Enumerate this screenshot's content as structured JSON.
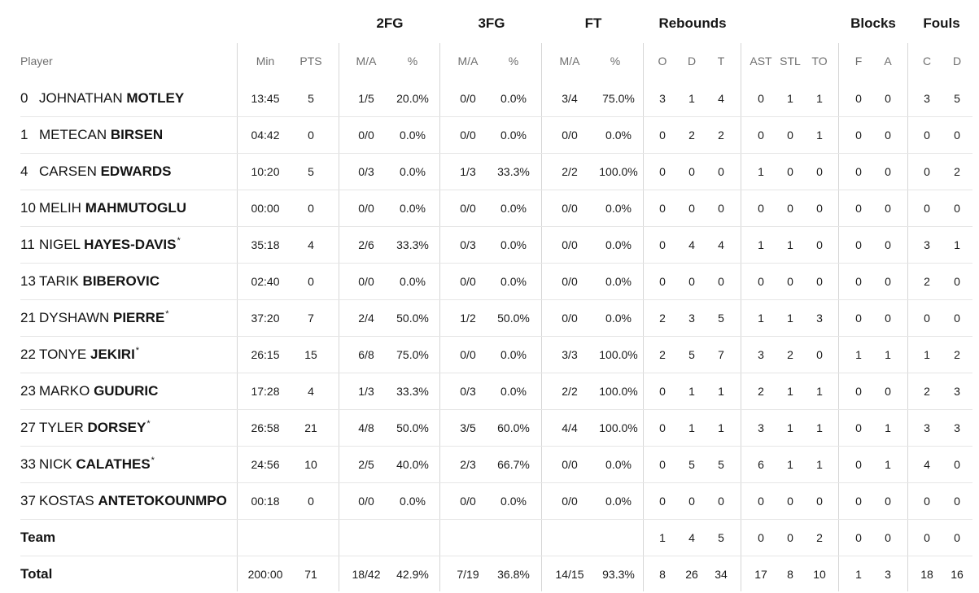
{
  "groups": {
    "fg2": "2FG",
    "fg3": "3FG",
    "ft": "FT",
    "rebounds": "Rebounds",
    "blocks": "Blocks",
    "fouls": "Fouls"
  },
  "headers": {
    "player": "Player",
    "min": "Min",
    "pts": "PTS",
    "fg2_ma": "M/A",
    "fg2_pct": "%",
    "fg3_ma": "M/A",
    "fg3_pct": "%",
    "ft_ma": "M/A",
    "ft_pct": "%",
    "reb_o": "O",
    "reb_d": "D",
    "reb_t": "T",
    "ast": "AST",
    "stl": "STL",
    "to": "TO",
    "blk_f": "F",
    "blk_a": "A",
    "foul_c": "C",
    "foul_d": "D"
  },
  "players": [
    {
      "num": "0",
      "first": "JOHNATHAN",
      "last": "MOTLEY",
      "star": "",
      "min": "13:45",
      "pts": "5",
      "fg2_ma": "1/5",
      "fg2_pct": "20.0%",
      "fg3_ma": "0/0",
      "fg3_pct": "0.0%",
      "ft_ma": "3/4",
      "ft_pct": "75.0%",
      "reb_o": "3",
      "reb_d": "1",
      "reb_t": "4",
      "ast": "0",
      "stl": "1",
      "to": "1",
      "blk_f": "0",
      "blk_a": "0",
      "foul_c": "3",
      "foul_d": "5"
    },
    {
      "num": "1",
      "first": "METECAN",
      "last": "BIRSEN",
      "star": "",
      "min": "04:42",
      "pts": "0",
      "fg2_ma": "0/0",
      "fg2_pct": "0.0%",
      "fg3_ma": "0/0",
      "fg3_pct": "0.0%",
      "ft_ma": "0/0",
      "ft_pct": "0.0%",
      "reb_o": "0",
      "reb_d": "2",
      "reb_t": "2",
      "ast": "0",
      "stl": "0",
      "to": "1",
      "blk_f": "0",
      "blk_a": "0",
      "foul_c": "0",
      "foul_d": "0"
    },
    {
      "num": "4",
      "first": "CARSEN",
      "last": "EDWARDS",
      "star": "",
      "min": "10:20",
      "pts": "5",
      "fg2_ma": "0/3",
      "fg2_pct": "0.0%",
      "fg3_ma": "1/3",
      "fg3_pct": "33.3%",
      "ft_ma": "2/2",
      "ft_pct": "100.0%",
      "reb_o": "0",
      "reb_d": "0",
      "reb_t": "0",
      "ast": "1",
      "stl": "0",
      "to": "0",
      "blk_f": "0",
      "blk_a": "0",
      "foul_c": "0",
      "foul_d": "2"
    },
    {
      "num": "10",
      "first": "MELIH",
      "last": "MAHMUTOGLU",
      "star": "",
      "min": "00:00",
      "pts": "0",
      "fg2_ma": "0/0",
      "fg2_pct": "0.0%",
      "fg3_ma": "0/0",
      "fg3_pct": "0.0%",
      "ft_ma": "0/0",
      "ft_pct": "0.0%",
      "reb_o": "0",
      "reb_d": "0",
      "reb_t": "0",
      "ast": "0",
      "stl": "0",
      "to": "0",
      "blk_f": "0",
      "blk_a": "0",
      "foul_c": "0",
      "foul_d": "0"
    },
    {
      "num": "11",
      "first": "NIGEL",
      "last": "HAYES-DAVIS",
      "star": "*",
      "min": "35:18",
      "pts": "4",
      "fg2_ma": "2/6",
      "fg2_pct": "33.3%",
      "fg3_ma": "0/3",
      "fg3_pct": "0.0%",
      "ft_ma": "0/0",
      "ft_pct": "0.0%",
      "reb_o": "0",
      "reb_d": "4",
      "reb_t": "4",
      "ast": "1",
      "stl": "1",
      "to": "0",
      "blk_f": "0",
      "blk_a": "0",
      "foul_c": "3",
      "foul_d": "1"
    },
    {
      "num": "13",
      "first": "TARIK",
      "last": "BIBEROVIC",
      "star": "",
      "min": "02:40",
      "pts": "0",
      "fg2_ma": "0/0",
      "fg2_pct": "0.0%",
      "fg3_ma": "0/0",
      "fg3_pct": "0.0%",
      "ft_ma": "0/0",
      "ft_pct": "0.0%",
      "reb_o": "0",
      "reb_d": "0",
      "reb_t": "0",
      "ast": "0",
      "stl": "0",
      "to": "0",
      "blk_f": "0",
      "blk_a": "0",
      "foul_c": "2",
      "foul_d": "0"
    },
    {
      "num": "21",
      "first": "DYSHAWN",
      "last": "PIERRE",
      "star": "*",
      "min": "37:20",
      "pts": "7",
      "fg2_ma": "2/4",
      "fg2_pct": "50.0%",
      "fg3_ma": "1/2",
      "fg3_pct": "50.0%",
      "ft_ma": "0/0",
      "ft_pct": "0.0%",
      "reb_o": "2",
      "reb_d": "3",
      "reb_t": "5",
      "ast": "1",
      "stl": "1",
      "to": "3",
      "blk_f": "0",
      "blk_a": "0",
      "foul_c": "0",
      "foul_d": "0"
    },
    {
      "num": "22",
      "first": "TONYE",
      "last": "JEKIRI",
      "star": "*",
      "min": "26:15",
      "pts": "15",
      "fg2_ma": "6/8",
      "fg2_pct": "75.0%",
      "fg3_ma": "0/0",
      "fg3_pct": "0.0%",
      "ft_ma": "3/3",
      "ft_pct": "100.0%",
      "reb_o": "2",
      "reb_d": "5",
      "reb_t": "7",
      "ast": "3",
      "stl": "2",
      "to": "0",
      "blk_f": "1",
      "blk_a": "1",
      "foul_c": "1",
      "foul_d": "2"
    },
    {
      "num": "23",
      "first": "MARKO",
      "last": "GUDURIC",
      "star": "",
      "min": "17:28",
      "pts": "4",
      "fg2_ma": "1/3",
      "fg2_pct": "33.3%",
      "fg3_ma": "0/3",
      "fg3_pct": "0.0%",
      "ft_ma": "2/2",
      "ft_pct": "100.0%",
      "reb_o": "0",
      "reb_d": "1",
      "reb_t": "1",
      "ast": "2",
      "stl": "1",
      "to": "1",
      "blk_f": "0",
      "blk_a": "0",
      "foul_c": "2",
      "foul_d": "3"
    },
    {
      "num": "27",
      "first": "TYLER",
      "last": "DORSEY",
      "star": "*",
      "min": "26:58",
      "pts": "21",
      "fg2_ma": "4/8",
      "fg2_pct": "50.0%",
      "fg3_ma": "3/5",
      "fg3_pct": "60.0%",
      "ft_ma": "4/4",
      "ft_pct": "100.0%",
      "reb_o": "0",
      "reb_d": "1",
      "reb_t": "1",
      "ast": "3",
      "stl": "1",
      "to": "1",
      "blk_f": "0",
      "blk_a": "1",
      "foul_c": "3",
      "foul_d": "3"
    },
    {
      "num": "33",
      "first": "NICK",
      "last": "CALATHES",
      "star": "*",
      "min": "24:56",
      "pts": "10",
      "fg2_ma": "2/5",
      "fg2_pct": "40.0%",
      "fg3_ma": "2/3",
      "fg3_pct": "66.7%",
      "ft_ma": "0/0",
      "ft_pct": "0.0%",
      "reb_o": "0",
      "reb_d": "5",
      "reb_t": "5",
      "ast": "6",
      "stl": "1",
      "to": "1",
      "blk_f": "0",
      "blk_a": "1",
      "foul_c": "4",
      "foul_d": "0"
    },
    {
      "num": "37",
      "first": "KOSTAS",
      "last": "ANTETOKOUNMPO",
      "star": "",
      "min": "00:18",
      "pts": "0",
      "fg2_ma": "0/0",
      "fg2_pct": "0.0%",
      "fg3_ma": "0/0",
      "fg3_pct": "0.0%",
      "ft_ma": "0/0",
      "ft_pct": "0.0%",
      "reb_o": "0",
      "reb_d": "0",
      "reb_t": "0",
      "ast": "0",
      "stl": "0",
      "to": "0",
      "blk_f": "0",
      "blk_a": "0",
      "foul_c": "0",
      "foul_d": "0"
    }
  ],
  "team": {
    "label": "Team",
    "min": "",
    "pts": "",
    "fg2_ma": "",
    "fg2_pct": "",
    "fg3_ma": "",
    "fg3_pct": "",
    "ft_ma": "",
    "ft_pct": "",
    "reb_o": "1",
    "reb_d": "4",
    "reb_t": "5",
    "ast": "0",
    "stl": "0",
    "to": "2",
    "blk_f": "0",
    "blk_a": "0",
    "foul_c": "0",
    "foul_d": "0"
  },
  "total": {
    "label": "Total",
    "min": "200:00",
    "pts": "71",
    "fg2_ma": "18/42",
    "fg2_pct": "42.9%",
    "fg3_ma": "7/19",
    "fg3_pct": "36.8%",
    "ft_ma": "14/15",
    "ft_pct": "93.3%",
    "reb_o": "8",
    "reb_d": "26",
    "reb_t": "34",
    "ast": "17",
    "stl": "8",
    "to": "10",
    "blk_f": "1",
    "blk_a": "3",
    "foul_c": "18",
    "foul_d": "16"
  }
}
